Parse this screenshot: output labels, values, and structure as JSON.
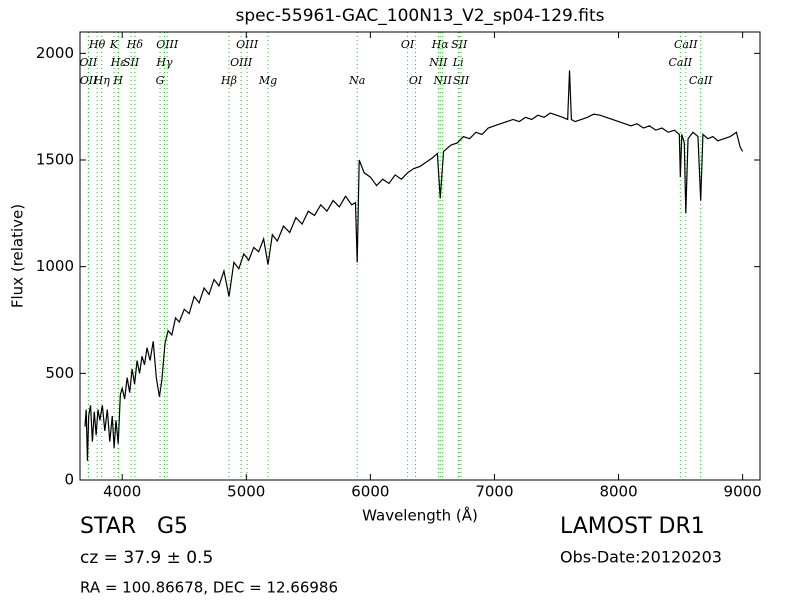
{
  "chart_data": {
    "type": "line",
    "title": "spec-55961-GAC_100N13_V2_sp04-129.fits",
    "x_label": "Wavelength (Å)",
    "y_label": "Flux (relative)",
    "color": "#000000",
    "line_color": "#33bb33",
    "xlim": [
      3660,
      9140
    ],
    "ylim": [
      0,
      2100
    ],
    "xticks": [
      4000,
      5000,
      6000,
      7000,
      8000,
      9000
    ],
    "yticks": [
      0,
      500,
      1000,
      1500,
      2000
    ],
    "x": [
      3700,
      3710,
      3720,
      3730,
      3745,
      3760,
      3775,
      3790,
      3805,
      3820,
      3840,
      3860,
      3880,
      3900,
      3920,
      3935,
      3950,
      3968,
      3985,
      4000,
      4020,
      4040,
      4060,
      4080,
      4100,
      4120,
      4140,
      4160,
      4180,
      4200,
      4225,
      4250,
      4275,
      4300,
      4320,
      4345,
      4370,
      4400,
      4430,
      4460,
      4500,
      4540,
      4580,
      4620,
      4660,
      4700,
      4740,
      4780,
      4820,
      4861,
      4900,
      4940,
      4980,
      5020,
      5060,
      5100,
      5140,
      5175,
      5210,
      5250,
      5300,
      5350,
      5400,
      5450,
      5500,
      5550,
      5600,
      5650,
      5700,
      5750,
      5800,
      5850,
      5880,
      5894,
      5910,
      5950,
      6000,
      6050,
      6100,
      6150,
      6200,
      6250,
      6300,
      6350,
      6400,
      6450,
      6500,
      6540,
      6563,
      6590,
      6650,
      6700,
      6750,
      6800,
      6850,
      6900,
      6950,
      7000,
      7050,
      7100,
      7150,
      7200,
      7250,
      7300,
      7350,
      7400,
      7450,
      7500,
      7550,
      7590,
      7605,
      7620,
      7650,
      7700,
      7750,
      7800,
      7850,
      7900,
      7950,
      8000,
      8050,
      8100,
      8150,
      8200,
      8250,
      8300,
      8350,
      8400,
      8450,
      8490,
      8498,
      8510,
      8530,
      8542,
      8560,
      8600,
      8640,
      8662,
      8680,
      8720,
      8760,
      8800,
      8850,
      8900,
      8950,
      8980,
      9000
    ],
    "values": [
      250,
      330,
      90,
      300,
      350,
      180,
      320,
      210,
      330,
      280,
      350,
      230,
      330,
      180,
      300,
      150,
      280,
      170,
      400,
      430,
      380,
      480,
      410,
      520,
      450,
      560,
      500,
      580,
      540,
      620,
      560,
      650,
      480,
      390,
      470,
      640,
      700,
      680,
      760,
      740,
      800,
      780,
      860,
      830,
      900,
      870,
      940,
      910,
      980,
      860,
      1020,
      990,
      1060,
      1030,
      1090,
      1070,
      1130,
      1010,
      1150,
      1120,
      1190,
      1160,
      1230,
      1200,
      1260,
      1240,
      1290,
      1260,
      1310,
      1280,
      1330,
      1290,
      1300,
      1020,
      1500,
      1440,
      1420,
      1380,
      1410,
      1390,
      1430,
      1410,
      1440,
      1460,
      1470,
      1490,
      1510,
      1530,
      1320,
      1540,
      1570,
      1580,
      1610,
      1600,
      1630,
      1620,
      1650,
      1660,
      1670,
      1680,
      1690,
      1680,
      1700,
      1690,
      1710,
      1700,
      1720,
      1710,
      1700,
      1690,
      1920,
      1690,
      1680,
      1690,
      1700,
      1715,
      1710,
      1700,
      1690,
      1680,
      1670,
      1660,
      1670,
      1650,
      1660,
      1640,
      1650,
      1630,
      1640,
      1620,
      1420,
      1620,
      1580,
      1250,
      1600,
      1630,
      1610,
      1310,
      1620,
      1600,
      1610,
      1590,
      1600,
      1610,
      1630,
      1560,
      1540
    ],
    "line_labels": [
      [
        {
          "label": "Hθ",
          "wavelength": 3798
        },
        {
          "label": "K",
          "wavelength": 3934
        },
        {
          "label": "Hδ",
          "wavelength": 4102
        },
        {
          "label": "OIII",
          "wavelength": 4363
        },
        {
          "label": "OIII",
          "wavelength": 5007
        },
        {
          "label": "OI",
          "wavelength": 6300
        },
        {
          "label": "Hα",
          "wavelength": 6563
        },
        {
          "label": "SII",
          "wavelength": 6716
        },
        {
          "label": "CaII",
          "wavelength": 8542
        }
      ],
      [
        {
          "label": "OII",
          "wavelength": 3727
        },
        {
          "label": "Hε",
          "wavelength": 3970
        },
        {
          "label": "SII",
          "wavelength": 4072
        },
        {
          "label": "Hγ",
          "wavelength": 4341
        },
        {
          "label": "OIII",
          "wavelength": 4959
        },
        {
          "label": "NII",
          "wavelength": 6548
        },
        {
          "label": "Li",
          "wavelength": 6708
        },
        {
          "label": "CaII",
          "wavelength": 8498
        }
      ],
      [
        {
          "label": "OII",
          "wavelength": 3729
        },
        {
          "label": "Hη",
          "wavelength": 3835
        },
        {
          "label": "H",
          "wavelength": 3968
        },
        {
          "label": "G",
          "wavelength": 4305
        },
        {
          "label": "Hβ",
          "wavelength": 4861
        },
        {
          "label": "Mg",
          "wavelength": 5175
        },
        {
          "label": "Na",
          "wavelength": 5894
        },
        {
          "label": "OI",
          "wavelength": 6364
        },
        {
          "label": "NII",
          "wavelength": 6583
        },
        {
          "label": "SII",
          "wavelength": 6731
        },
        {
          "label": "CaII",
          "wavelength": 8662
        }
      ]
    ]
  },
  "footer": {
    "object": "STAR   G5",
    "survey": "LAMOST DR1",
    "redshift": "cz = 37.9 ± 0.5",
    "date": "Obs-Date:20120203",
    "coords": "RA = 100.86678, DEC = 12.66986"
  }
}
